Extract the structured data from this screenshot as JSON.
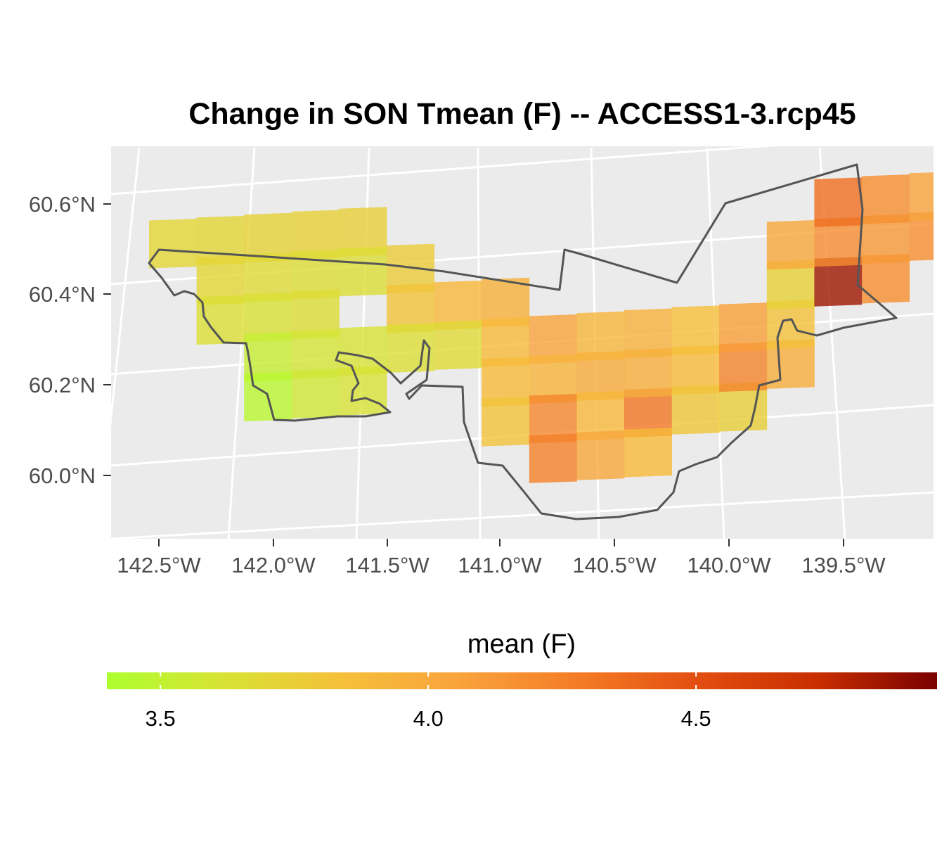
{
  "chart_data": {
    "type": "heatmap",
    "title": "Change in SON Tmean (F) -- ACCESS1-3.rcp45",
    "x_ticks": [
      "142.5°W",
      "142.0°W",
      "141.5°W",
      "141.0°W",
      "140.5°W",
      "140.0°W",
      "139.5°W"
    ],
    "y_ticks": [
      "60.6°N",
      "60.4°N",
      "60.2°N",
      "60.0°N"
    ],
    "legend": {
      "title": "mean (F)",
      "placement": "bottom",
      "min": 3.4,
      "max": 4.95,
      "ticks": [
        3.5,
        4.0,
        4.5
      ],
      "tick_labels": [
        "3.5",
        "4.0",
        "4.5"
      ],
      "colors": [
        "#adff2f",
        "#d8e234",
        "#f6bf3a",
        "#f9a23c",
        "#f47b25",
        "#e24d10",
        "#c82e00",
        "#7a0000"
      ]
    },
    "values": [
      3.7,
      3.71,
      3.72,
      3.73,
      3.74,
      3.7,
      3.68,
      3.66,
      3.65,
      3.64,
      3.63,
      3.66,
      3.53,
      3.6,
      3.61,
      3.76,
      3.46,
      3.58,
      3.62,
      3.82,
      3.9,
      3.96,
      3.64,
      3.68,
      3.88,
      4.05,
      3.93,
      3.87,
      4.22,
      4.0,
      3.92,
      3.9,
      4.31,
      3.98,
      3.94,
      3.88,
      3.84,
      3.82,
      4.25,
      4.02,
      3.88,
      3.8,
      3.75,
      4.24,
      4.08,
      3.98,
      3.83,
      3.73,
      4.85,
      4.18,
      4.19,
      4.12,
      4.35,
      4.18,
      4.02,
      4.17,
      4.05,
      3.9
    ]
  }
}
